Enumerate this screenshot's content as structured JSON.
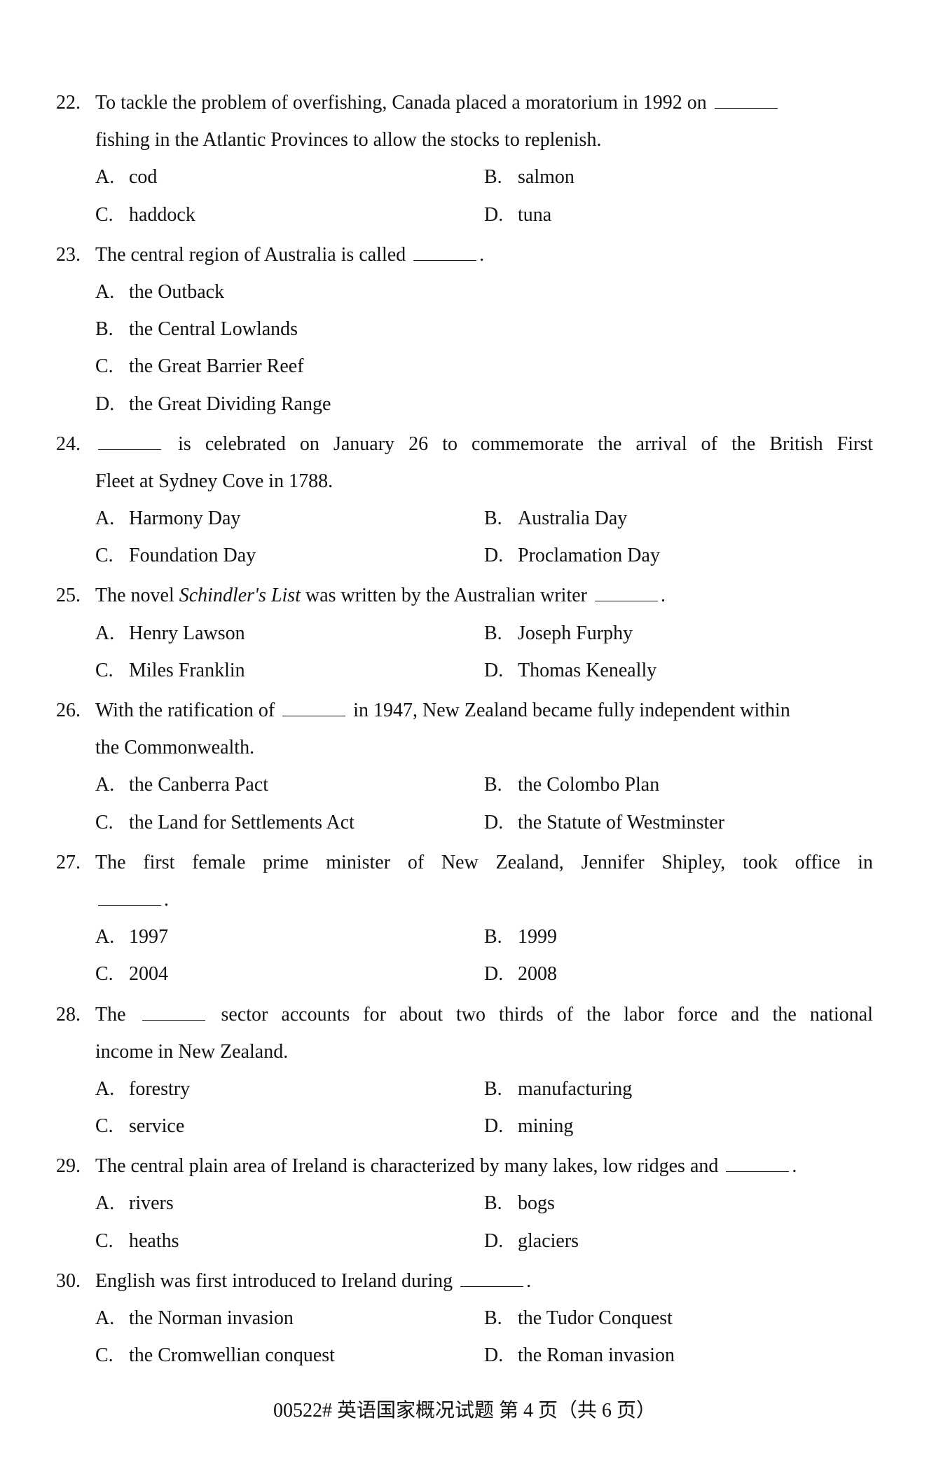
{
  "questions": [
    {
      "num": "22.",
      "stem_line1": "To tackle the problem of overfishing, Canada placed a moratorium in 1992 on ",
      "stem_line2": "fishing in the Atlantic Provinces to allow the stocks to replenish.",
      "opts": {
        "A": "cod",
        "B": "salmon",
        "C": "haddock",
        "D": "tuna"
      },
      "layout": "2x2",
      "blank_after_line1": true
    },
    {
      "num": "23.",
      "stem_line1": "The central region of Australia is called ",
      "stem_tail": ".",
      "opts": {
        "A": "the Outback",
        "B": "the Central Lowlands",
        "C": "the Great Barrier Reef",
        "D": "the Great Dividing Range"
      },
      "layout": "1col",
      "blank_after_line1": true
    },
    {
      "num": "24.",
      "stem_pre_blank": true,
      "stem_line1_after": " is celebrated on January 26 to commemorate the arrival of the British First",
      "stem_line2": "Fleet at Sydney Cove in 1788.",
      "opts": {
        "A": "Harmony Day",
        "B": "Australia Day",
        "C": "Foundation Day",
        "D": "Proclamation Day"
      },
      "layout": "2x2"
    },
    {
      "num": "25.",
      "stem_line1_a": "The novel ",
      "stem_italic": "Schindler's List",
      "stem_line1_b": " was written by the Australian writer ",
      "stem_tail": ".",
      "opts": {
        "A": "Henry Lawson",
        "B": "Joseph Furphy",
        "C": "Miles Franklin",
        "D": "Thomas Keneally"
      },
      "layout": "2x2",
      "blank_after_line1": true
    },
    {
      "num": "26.",
      "stem_line1_a": "With the ratification of ",
      "stem_line1_b": " in 1947, New Zealand became fully independent within",
      "stem_line2": "the Commonwealth.",
      "opts": {
        "A": "the Canberra Pact",
        "B": "the Colombo Plan",
        "C": "the Land for Settlements Act",
        "D": "the Statute of Westminster"
      },
      "layout": "2x2",
      "blank_mid_line1": true
    },
    {
      "num": "27.",
      "stem_line1": "The first female prime minister of New Zealand, Jennifer Shipley, took office in",
      "stem_line2_blank_only": true,
      "stem_tail": ".",
      "opts": {
        "A": "1997",
        "B": "1999",
        "C": "2004",
        "D": "2008"
      },
      "layout": "2x2",
      "justify_line1": true
    },
    {
      "num": "28.",
      "stem_line1_a": "The ",
      "stem_line1_b": " sector accounts for about two thirds of the labor force and the national",
      "stem_line2": "income in New Zealand.",
      "opts": {
        "A": "forestry",
        "B": "manufacturing",
        "C": "service",
        "D": "mining"
      },
      "layout": "2x2",
      "blank_mid_line1": true,
      "justify_line1": true
    },
    {
      "num": "29.",
      "stem_line1": "The central plain area of Ireland is characterized by many lakes, low ridges and ",
      "stem_tail": ".",
      "opts": {
        "A": "rivers",
        "B": "bogs",
        "C": "heaths",
        "D": "glaciers"
      },
      "layout": "2x2",
      "blank_after_line1": true
    },
    {
      "num": "30.",
      "stem_line1": "English was first introduced to Ireland during ",
      "stem_tail": ".",
      "opts": {
        "A": "the Norman invasion",
        "B": "the Tudor Conquest",
        "C": "the Cromwellian conquest",
        "D": "the Roman invasion"
      },
      "layout": "2x2",
      "blank_after_line1": true
    }
  ],
  "footer": "00522# 英语国家概况试题 第 4 页（共 6 页）"
}
